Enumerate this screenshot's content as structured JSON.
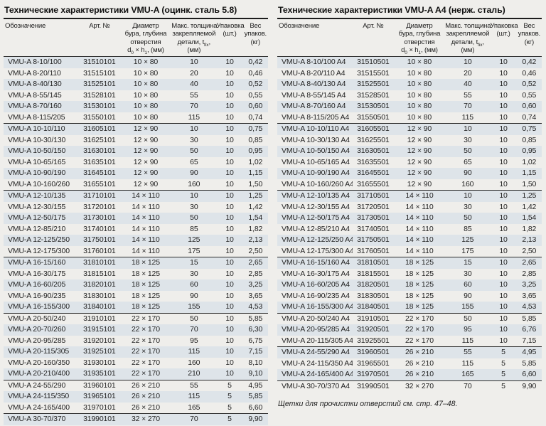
{
  "colors": {
    "page_background": "#efeeeb",
    "row_stripe": "#dee4e9",
    "rule_dark": "#1c1c1c"
  },
  "column_header": {
    "designation": "Обозначение",
    "art_no": "Арт. №",
    "diameter_line1": "Диаметр",
    "diameter_line2": "бура, глубина",
    "diameter_line3": "отверстия",
    "diameter_d": "d",
    "diameter_d_sub": "0",
    "diameter_x_h": " × h",
    "diameter_h_sub": "1",
    "diameter_unit": ", (мм)",
    "thickness_line1": "Макс. толщина",
    "thickness_line2": "закрепляемой",
    "thickness_pre": "детали, t",
    "thickness_sub": "fix",
    "thickness_comma": ",",
    "thickness_unit": "(мм)",
    "pack_line1": "Упаковка",
    "pack_line2": "(шт.)",
    "weight_line1": "Вес",
    "weight_line2": "упаков.",
    "weight_line3": "(кг)"
  },
  "tables": [
    {
      "title": "Технические характеристики VMU-A (оцинк. сталь 5.8)",
      "group_breaks": [
        6,
        12,
        18,
        23,
        29,
        32
      ],
      "rows": [
        [
          "VMU-A 8-10/100",
          "31510101",
          "10 × 80",
          "10",
          "10",
          "0,42"
        ],
        [
          "VMU-A 8-20/110",
          "31515101",
          "10 × 80",
          "20",
          "10",
          "0,46"
        ],
        [
          "VMU-A 8-40/130",
          "31525101",
          "10 × 80",
          "40",
          "10",
          "0,52"
        ],
        [
          "VMU-A 8-55/145",
          "31528101",
          "10 × 80",
          "55",
          "10",
          "0,55"
        ],
        [
          "VMU-A 8-70/160",
          "31530101",
          "10 × 80",
          "70",
          "10",
          "0,60"
        ],
        [
          "VMU-A 8-115/205",
          "31550101",
          "10 × 80",
          "115",
          "10",
          "0,74"
        ],
        [
          "VMU-A 10-10/110",
          "31605101",
          "12 × 90",
          "10",
          "10",
          "0,75"
        ],
        [
          "VMU-A 10-30/130",
          "31625101",
          "12 × 90",
          "30",
          "10",
          "0,85"
        ],
        [
          "VMU-A 10-50/150",
          "31630101",
          "12 × 90",
          "50",
          "10",
          "0,95"
        ],
        [
          "VMU-A 10-65/165",
          "31635101",
          "12 × 90",
          "65",
          "10",
          "1,02"
        ],
        [
          "VMU-A 10-90/190",
          "31645101",
          "12 × 90",
          "90",
          "10",
          "1,15"
        ],
        [
          "VMU-A 10-160/260",
          "31655101",
          "12 × 90",
          "160",
          "10",
          "1,50"
        ],
        [
          "VMU-A 12-10/135",
          "31710101",
          "14 × 110",
          "10",
          "10",
          "1,25"
        ],
        [
          "VMU-A 12-30/155",
          "31720101",
          "14 × 110",
          "30",
          "10",
          "1,42"
        ],
        [
          "VMU-A 12-50/175",
          "31730101",
          "14 × 110",
          "50",
          "10",
          "1,54"
        ],
        [
          "VMU-A 12-85/210",
          "31740101",
          "14 × 110",
          "85",
          "10",
          "1,82"
        ],
        [
          "VMU-A 12-125/250",
          "31750101",
          "14 × 110",
          "125",
          "10",
          "2,13"
        ],
        [
          "VMU-A 12-175/300",
          "31760101",
          "14 × 110",
          "175",
          "10",
          "2,50"
        ],
        [
          "VMU-A 16-15/160",
          "31810101",
          "18 × 125",
          "15",
          "10",
          "2,65"
        ],
        [
          "VMU-A 16-30/175",
          "31815101",
          "18 × 125",
          "30",
          "10",
          "2,85"
        ],
        [
          "VMU-A 16-60/205",
          "31820101",
          "18 × 125",
          "60",
          "10",
          "3,25"
        ],
        [
          "VMU-A 16-90/235",
          "31830101",
          "18 × 125",
          "90",
          "10",
          "3,65"
        ],
        [
          "VMU-A 16-155/300",
          "31840101",
          "18 × 125",
          "155",
          "10",
          "4,53"
        ],
        [
          "VMU-A 20-50/240",
          "31910101",
          "22 × 170",
          "50",
          "10",
          "5,85"
        ],
        [
          "VMU-A 20-70/260",
          "31915101",
          "22 × 170",
          "70",
          "10",
          "6,30"
        ],
        [
          "VMU-A 20-95/285",
          "31920101",
          "22 × 170",
          "95",
          "10",
          "6,75"
        ],
        [
          "VMU-A 20-115/305",
          "31925101",
          "22 × 170",
          "115",
          "10",
          "7,15"
        ],
        [
          "VMU-A 20-160/350",
          "31930101",
          "22 × 170",
          "160",
          "10",
          "8,10"
        ],
        [
          "VMU-A 20-210/400",
          "31935101",
          "22 × 170",
          "210",
          "10",
          "9,10"
        ],
        [
          "VMU-A 24-55/290",
          "31960101",
          "26 × 210",
          "55",
          "5",
          "4,95"
        ],
        [
          "VMU-A 24-115/350",
          "31965101",
          "26 × 210",
          "115",
          "5",
          "5,85"
        ],
        [
          "VMU-A 24-165/400",
          "31970101",
          "26 × 210",
          "165",
          "5",
          "6,60"
        ],
        [
          "VMU-A 30-70/370",
          "31990101",
          "32 × 270",
          "70",
          "5",
          "9,90"
        ]
      ]
    },
    {
      "title": "Технические характеристики VMU-A A4 (нерж. сталь)",
      "group_breaks": [
        6,
        12,
        18,
        23,
        26,
        29
      ],
      "footnote": "Щетки для прочистки отверстий см. стр. 47–48.",
      "rows": [
        [
          "VMU-A 8-10/100 A4",
          "31510501",
          "10 × 80",
          "10",
          "10",
          "0,42"
        ],
        [
          "VMU-A 8-20/110 A4",
          "31515501",
          "10 × 80",
          "20",
          "10",
          "0,46"
        ],
        [
          "VMU-A 8-40/130 A4",
          "31525501",
          "10 × 80",
          "40",
          "10",
          "0,52"
        ],
        [
          "VMU-A 8-55/145 A4",
          "31528501",
          "10 × 80",
          "55",
          "10",
          "0,55"
        ],
        [
          "VMU-A 8-70/160 A4",
          "31530501",
          "10 × 80",
          "70",
          "10",
          "0,60"
        ],
        [
          "VMU-A 8-115/205 A4",
          "31550501",
          "10 × 80",
          "115",
          "10",
          "0,74"
        ],
        [
          "VMU-A 10-10/110 A4",
          "31605501",
          "12 × 90",
          "10",
          "10",
          "0,75"
        ],
        [
          "VMU-A 10-30/130 A4",
          "31625501",
          "12 × 90",
          "30",
          "10",
          "0,85"
        ],
        [
          "VMU-A 10-50/150 A4",
          "31630501",
          "12 × 90",
          "50",
          "10",
          "0,95"
        ],
        [
          "VMU-A 10-65/165 A4",
          "31635501",
          "12 × 90",
          "65",
          "10",
          "1,02"
        ],
        [
          "VMU-A 10-90/190 A4",
          "31645501",
          "12 × 90",
          "90",
          "10",
          "1,15"
        ],
        [
          "VMU-A 10-160/260 A4",
          "31655501",
          "12 × 90",
          "160",
          "10",
          "1,50"
        ],
        [
          "VMU-A 12-10/135 A4",
          "31710501",
          "14 × 110",
          "10",
          "10",
          "1,25"
        ],
        [
          "VMU-A 12-30/155 A4",
          "31720501",
          "14 × 110",
          "30",
          "10",
          "1,42"
        ],
        [
          "VMU-A 12-50/175 A4",
          "31730501",
          "14 × 110",
          "50",
          "10",
          "1,54"
        ],
        [
          "VMU-A 12-85/210 A4",
          "31740501",
          "14 × 110",
          "85",
          "10",
          "1,82"
        ],
        [
          "VMU-A 12-125/250 A4",
          "31750501",
          "14 × 110",
          "125",
          "10",
          "2,13"
        ],
        [
          "VMU-A 12-175/300 A4",
          "31760501",
          "14 × 110",
          "175",
          "10",
          "2,50"
        ],
        [
          "VMU-A 16-15/160 A4",
          "31810501",
          "18 × 125",
          "15",
          "10",
          "2,65"
        ],
        [
          "VMU-A 16-30/175 A4",
          "31815501",
          "18 × 125",
          "30",
          "10",
          "2,85"
        ],
        [
          "VMU-A 16-60/205 A4",
          "31820501",
          "18 × 125",
          "60",
          "10",
          "3,25"
        ],
        [
          "VMU-A 16-90/235 A4",
          "31830501",
          "18 × 125",
          "90",
          "10",
          "3,65"
        ],
        [
          "VMU-A 16-155/300 A4",
          "31840501",
          "18 × 125",
          "155",
          "10",
          "4,53"
        ],
        [
          "VMU-A 20-50/240 A4",
          "31910501",
          "22 × 170",
          "50",
          "10",
          "5,85"
        ],
        [
          "VMU-A 20-95/285 A4",
          "31920501",
          "22 × 170",
          "95",
          "10",
          "6,76"
        ],
        [
          "VMU-A 20-115/305 A4",
          "31925501",
          "22 × 170",
          "115",
          "10",
          "7,15"
        ],
        [
          "VMU-A 24-55/290 A4",
          "31960501",
          "26 × 210",
          "55",
          "5",
          "4,95"
        ],
        [
          "VMU-A 24-115/350 A4",
          "31965501",
          "26 × 210",
          "115",
          "5",
          "5,85"
        ],
        [
          "VMU-A 24-165/400 A4",
          "31970501",
          "26 × 210",
          "165",
          "5",
          "6,60"
        ],
        [
          "VMU-A 30-70/370 A4",
          "31990501",
          "32 × 270",
          "70",
          "5",
          "9,90"
        ]
      ]
    }
  ]
}
